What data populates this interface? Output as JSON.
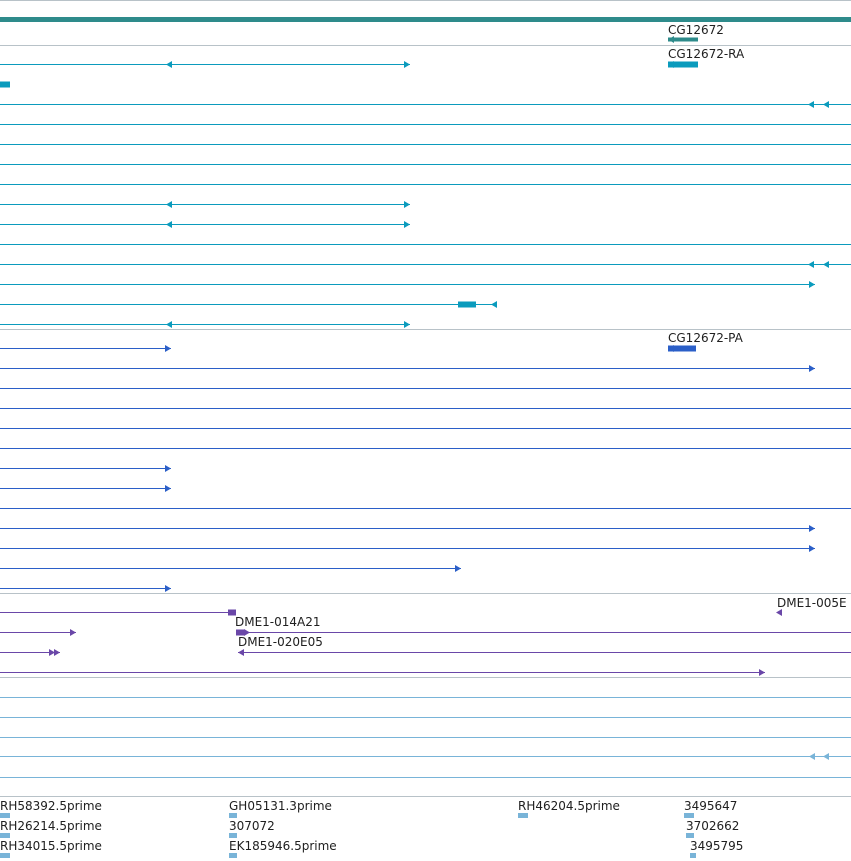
{
  "colors": {
    "gene": "#2e8b8b",
    "flybase_transcript": "#0b9bbd",
    "refseq": "#2b5fc8",
    "clones": "#6a47a8",
    "ests_light": "#79b4d8",
    "divider": "#b8c2c8"
  },
  "tracks": {
    "gene_label": "CG12672",
    "transcript_label": "CG12672-RA",
    "protein_label": "CG12672-PA",
    "clone_labels": [
      "DME1-005E",
      "DME1-014A21",
      "DME1-020E05"
    ],
    "est_labels": [
      "RH58392.5prime",
      "GH05131.3prime",
      "RH46204.5prime",
      "3495647",
      "RH26214.5prime",
      "307072",
      "3702662",
      "RH34015.5prime",
      "EK185946.5prime",
      "3495795"
    ]
  }
}
